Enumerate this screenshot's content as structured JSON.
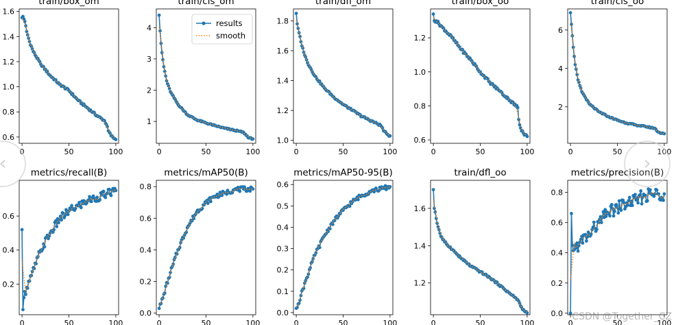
{
  "legend": {
    "results": "results",
    "smooth": "smooth"
  },
  "colors": {
    "results": "#1f77b4",
    "smooth": "#ff7f0e"
  },
  "watermark": "CSDN @Together_CZ",
  "nav": {
    "prev_icon": "chevron-left-icon",
    "next_icon": "chevron-right-icon"
  },
  "chart_data": [
    {
      "type": "line",
      "title": "train/box_om",
      "xlim": [
        -3,
        103
      ],
      "ylim": [
        0.55,
        1.62
      ],
      "xticks": [
        0,
        50,
        100
      ],
      "yticks": [
        0.6,
        0.8,
        1.0,
        1.2,
        1.4,
        1.6
      ],
      "yticklabels": [
        "0.6",
        "0.8",
        "1.0",
        "1.2",
        "1.4",
        "1.6"
      ],
      "anchors": [
        [
          0,
          1.55
        ],
        [
          1,
          1.56
        ],
        [
          2,
          1.54
        ],
        [
          3,
          1.52
        ],
        [
          5,
          1.44
        ],
        [
          8,
          1.36
        ],
        [
          12,
          1.28
        ],
        [
          20,
          1.18
        ],
        [
          30,
          1.09
        ],
        [
          40,
          1.02
        ],
        [
          50,
          0.97
        ],
        [
          60,
          0.89
        ],
        [
          70,
          0.83
        ],
        [
          80,
          0.77
        ],
        [
          88,
          0.73
        ],
        [
          90,
          0.7
        ],
        [
          92,
          0.65
        ],
        [
          95,
          0.61
        ],
        [
          100,
          0.58
        ]
      ],
      "noise": 0.008
    },
    {
      "type": "line",
      "title": "train/cls_om",
      "xlim": [
        -3,
        103
      ],
      "ylim": [
        0.3,
        4.6
      ],
      "xticks": [
        0,
        50,
        100
      ],
      "yticks": [
        1,
        2,
        3,
        4
      ],
      "yticklabels": [
        "1",
        "2",
        "3",
        "4"
      ],
      "legend": true,
      "anchors": [
        [
          0,
          4.4
        ],
        [
          1,
          3.9
        ],
        [
          2,
          3.5
        ],
        [
          3,
          3.2
        ],
        [
          5,
          2.75
        ],
        [
          8,
          2.3
        ],
        [
          12,
          1.95
        ],
        [
          20,
          1.55
        ],
        [
          30,
          1.22
        ],
        [
          40,
          1.05
        ],
        [
          50,
          0.95
        ],
        [
          60,
          0.86
        ],
        [
          70,
          0.78
        ],
        [
          80,
          0.72
        ],
        [
          90,
          0.65
        ],
        [
          93,
          0.55
        ],
        [
          96,
          0.47
        ],
        [
          100,
          0.44
        ]
      ],
      "noise": 0.02
    },
    {
      "type": "line",
      "title": "train/dfl_om",
      "xlim": [
        -3,
        103
      ],
      "ylim": [
        0.98,
        1.88
      ],
      "xticks": [
        0,
        50,
        100
      ],
      "yticks": [
        1.0,
        1.2,
        1.4,
        1.6,
        1.8
      ],
      "yticklabels": [
        "1.0",
        "1.2",
        "1.4",
        "1.6",
        "1.8"
      ],
      "anchors": [
        [
          0,
          1.85
        ],
        [
          1,
          1.78
        ],
        [
          2,
          1.75
        ],
        [
          3,
          1.72
        ],
        [
          5,
          1.66
        ],
        [
          8,
          1.59
        ],
        [
          12,
          1.52
        ],
        [
          20,
          1.43
        ],
        [
          30,
          1.35
        ],
        [
          40,
          1.29
        ],
        [
          50,
          1.24
        ],
        [
          60,
          1.2
        ],
        [
          70,
          1.16
        ],
        [
          80,
          1.13
        ],
        [
          90,
          1.1
        ],
        [
          94,
          1.06
        ],
        [
          97,
          1.04
        ],
        [
          100,
          1.03
        ]
      ],
      "noise": 0.006
    },
    {
      "type": "line",
      "title": "train/box_oo",
      "xlim": [
        -3,
        103
      ],
      "ylim": [
        0.58,
        1.37
      ],
      "xticks": [
        0,
        50,
        100
      ],
      "yticks": [
        0.6,
        0.8,
        1.0,
        1.2
      ],
      "yticklabels": [
        "0.6",
        "0.8",
        "1.0",
        "1.2"
      ],
      "anchors": [
        [
          0,
          1.34
        ],
        [
          1,
          1.3
        ],
        [
          3,
          1.3
        ],
        [
          10,
          1.26
        ],
        [
          20,
          1.2
        ],
        [
          30,
          1.13
        ],
        [
          40,
          1.07
        ],
        [
          50,
          1.0
        ],
        [
          60,
          0.94
        ],
        [
          70,
          0.89
        ],
        [
          80,
          0.84
        ],
        [
          90,
          0.79
        ],
        [
          91,
          0.72
        ],
        [
          93,
          0.67
        ],
        [
          96,
          0.64
        ],
        [
          100,
          0.62
        ]
      ],
      "noise": 0.008
    },
    {
      "type": "line",
      "title": "train/cls_oo",
      "xlim": [
        -3,
        103
      ],
      "ylim": [
        0.1,
        7.1
      ],
      "xticks": [
        0,
        50,
        100
      ],
      "yticks": [
        2,
        4,
        6
      ],
      "yticklabels": [
        "2",
        "4",
        "6"
      ],
      "anchors": [
        [
          0,
          6.9
        ],
        [
          1,
          6.3
        ],
        [
          2,
          5.7
        ],
        [
          3,
          5.1
        ],
        [
          5,
          4.2
        ],
        [
          8,
          3.4
        ],
        [
          12,
          2.8
        ],
        [
          20,
          2.15
        ],
        [
          30,
          1.75
        ],
        [
          40,
          1.5
        ],
        [
          50,
          1.3
        ],
        [
          60,
          1.15
        ],
        [
          70,
          1.05
        ],
        [
          80,
          0.97
        ],
        [
          90,
          0.88
        ],
        [
          93,
          0.7
        ],
        [
          97,
          0.62
        ],
        [
          100,
          0.6
        ]
      ],
      "noise": 0.03
    },
    {
      "type": "line",
      "title": "metrics/recall(B)",
      "xlim": [
        -3,
        103
      ],
      "ylim": [
        0.02,
        0.81
      ],
      "xticks": [
        0,
        50,
        100
      ],
      "yticks": [
        0.2,
        0.4,
        0.6
      ],
      "yticklabels": [
        "0.2",
        "0.4",
        "0.6"
      ],
      "anchors": [
        [
          0,
          0.52
        ],
        [
          1,
          0.05
        ],
        [
          2,
          0.12
        ],
        [
          5,
          0.18
        ],
        [
          10,
          0.25
        ],
        [
          15,
          0.32
        ],
        [
          20,
          0.4
        ],
        [
          30,
          0.5
        ],
        [
          40,
          0.58
        ],
        [
          50,
          0.63
        ],
        [
          60,
          0.66
        ],
        [
          70,
          0.69
        ],
        [
          80,
          0.71
        ],
        [
          90,
          0.73
        ],
        [
          100,
          0.75
        ]
      ],
      "noise": 0.025
    },
    {
      "type": "line",
      "title": "metrics/mAP50(B)",
      "xlim": [
        -3,
        103
      ],
      "ylim": [
        -0.01,
        0.84
      ],
      "xticks": [
        0,
        50,
        100
      ],
      "yticks": [
        0.0,
        0.2,
        0.4,
        0.6,
        0.8
      ],
      "yticklabels": [
        "0.0",
        "0.2",
        "0.4",
        "0.6",
        "0.8"
      ],
      "anchors": [
        [
          0,
          0.03
        ],
        [
          2,
          0.06
        ],
        [
          5,
          0.12
        ],
        [
          10,
          0.22
        ],
        [
          15,
          0.31
        ],
        [
          20,
          0.4
        ],
        [
          30,
          0.54
        ],
        [
          40,
          0.64
        ],
        [
          50,
          0.7
        ],
        [
          60,
          0.74
        ],
        [
          70,
          0.76
        ],
        [
          80,
          0.78
        ],
        [
          90,
          0.785
        ],
        [
          100,
          0.785
        ]
      ],
      "noise": 0.015
    },
    {
      "type": "line",
      "title": "metrics/mAP50-95(B)",
      "xlim": [
        -3,
        103
      ],
      "ylim": [
        -0.01,
        0.62
      ],
      "xticks": [
        0,
        50,
        100
      ],
      "yticks": [
        0.0,
        0.1,
        0.2,
        0.3,
        0.4,
        0.5,
        0.6
      ],
      "yticklabels": [
        "0.0",
        "0.1",
        "0.2",
        "0.3",
        "0.4",
        "0.5",
        "0.6"
      ],
      "anchors": [
        [
          0,
          0.02
        ],
        [
          2,
          0.04
        ],
        [
          5,
          0.08
        ],
        [
          10,
          0.15
        ],
        [
          15,
          0.21
        ],
        [
          20,
          0.27
        ],
        [
          30,
          0.36
        ],
        [
          40,
          0.43
        ],
        [
          50,
          0.48
        ],
        [
          60,
          0.52
        ],
        [
          70,
          0.55
        ],
        [
          80,
          0.57
        ],
        [
          90,
          0.58
        ],
        [
          100,
          0.59
        ]
      ],
      "noise": 0.01
    },
    {
      "type": "line",
      "title": "train/dfl_oo",
      "xlim": [
        -3,
        103
      ],
      "ylim": [
        1.03,
        1.75
      ],
      "xticks": [
        0,
        50,
        100
      ],
      "yticks": [
        1.2,
        1.4,
        1.6
      ],
      "yticklabels": [
        "1.2",
        "1.4",
        "1.6"
      ],
      "anchors": [
        [
          0,
          1.7
        ],
        [
          1,
          1.6
        ],
        [
          2,
          1.58
        ],
        [
          4,
          1.52
        ],
        [
          8,
          1.45
        ],
        [
          12,
          1.42
        ],
        [
          20,
          1.38
        ],
        [
          30,
          1.33
        ],
        [
          40,
          1.29
        ],
        [
          50,
          1.26
        ],
        [
          60,
          1.23
        ],
        [
          70,
          1.19
        ],
        [
          80,
          1.15
        ],
        [
          90,
          1.11
        ],
        [
          94,
          1.07
        ],
        [
          97,
          1.05
        ],
        [
          100,
          1.04
        ]
      ],
      "noise": 0.005
    },
    {
      "type": "line",
      "title": "metrics/precision(B)",
      "xlim": [
        -3,
        103
      ],
      "ylim": [
        -0.01,
        0.88
      ],
      "xticks": [
        0,
        50,
        100
      ],
      "yticks": [
        0.0,
        0.2,
        0.4,
        0.6,
        0.8
      ],
      "yticklabels": [
        "0.0",
        "0.2",
        "0.4",
        "0.6",
        "0.8"
      ],
      "anchors": [
        [
          0,
          0.0
        ],
        [
          1,
          0.66
        ],
        [
          2,
          0.45
        ],
        [
          4,
          0.42
        ],
        [
          10,
          0.47
        ],
        [
          20,
          0.52
        ],
        [
          30,
          0.6
        ],
        [
          40,
          0.66
        ],
        [
          50,
          0.7
        ],
        [
          60,
          0.73
        ],
        [
          70,
          0.75
        ],
        [
          80,
          0.78
        ],
        [
          90,
          0.79
        ],
        [
          100,
          0.79
        ]
      ],
      "noise": 0.045
    }
  ]
}
